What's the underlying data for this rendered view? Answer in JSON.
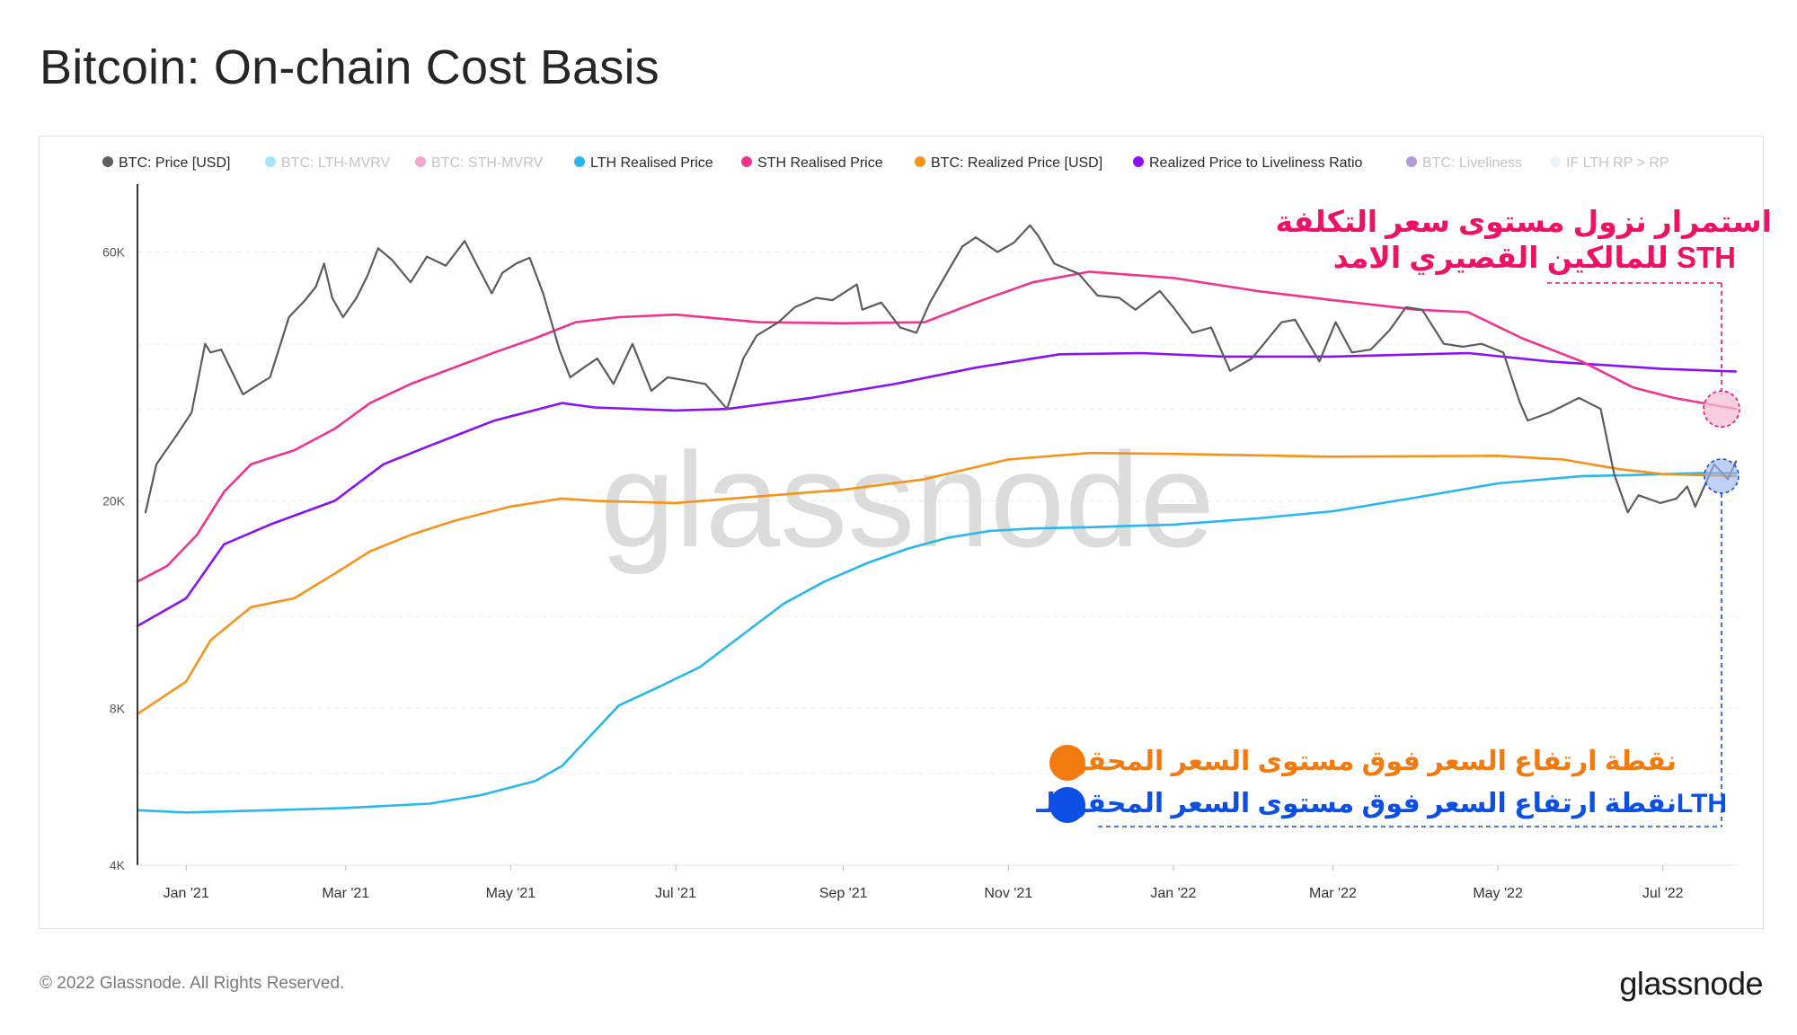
{
  "title": "Bitcoin: On-chain Cost Basis",
  "footer": {
    "copyright": "© 2022 Glassnode. All Rights Reserved.",
    "logo": "glassnode"
  },
  "watermark": "glassnode",
  "colors": {
    "price": "#5c5c5c",
    "lth_mvrv": "#3ec3f1",
    "sth_mvrv": "#f0338f",
    "lth_rp": "#29b7f0",
    "sth_rp": "#f0338f",
    "realized": "#f7931a",
    "liveliness": "#8a12f2",
    "btc_liveliness": "#5a1ea8",
    "if_lth": "#cde9f8",
    "annot_pink": "#ee1166",
    "annot_orange": "#f27a0e",
    "annot_blue": "#0b4fe5"
  },
  "annotations": {
    "sth": [
      "استمرار نزول مستوى سعر التكلفة",
      "للمالكين القصيري الامد STH"
    ],
    "realized": "نقطة ارتفاع السعر فوق مستوى السعر المحقق",
    "lth": "نقطة ارتفاع السعر فوق مستوى السعر المحقق لـLTH"
  },
  "chart_data": {
    "type": "line",
    "title": "Bitcoin: On-chain Cost Basis",
    "y_scale": "log",
    "ylim": [
      4000,
      80000
    ],
    "y_ticks": [
      {
        "v": 4000,
        "label": "4K"
      },
      {
        "v": 8000,
        "label": "8K"
      },
      {
        "v": 20000,
        "label": "20K"
      },
      {
        "v": 60000,
        "label": "60K"
      }
    ],
    "x_range": [
      "2020-12-14",
      "2022-07-29"
    ],
    "x_ticks": [
      {
        "d": "2021-01-01",
        "label": "Jan '21"
      },
      {
        "d": "2021-03-01",
        "label": "Mar '21"
      },
      {
        "d": "2021-05-01",
        "label": "May '21"
      },
      {
        "d": "2021-07-01",
        "label": "Jul '21"
      },
      {
        "d": "2021-09-01",
        "label": "Sep '21"
      },
      {
        "d": "2021-11-01",
        "label": "Nov '21"
      },
      {
        "d": "2022-01-01",
        "label": "Jan '22"
      },
      {
        "d": "2022-03-01",
        "label": "Mar '22"
      },
      {
        "d": "2022-05-01",
        "label": "May '22"
      },
      {
        "d": "2022-07-01",
        "label": "Jul '22"
      }
    ],
    "legend_position": "top",
    "legend": [
      {
        "name": "BTC: Price [USD]",
        "color": "#5c5c5c",
        "active": true
      },
      {
        "name": "BTC: LTH-MVRV",
        "color": "#3ec3f1",
        "active": false
      },
      {
        "name": "BTC: STH-MVRV",
        "color": "#f0338f",
        "active": false
      },
      {
        "name": "LTH Realised Price",
        "color": "#29b7f0",
        "active": true
      },
      {
        "name": "STH Realised Price",
        "color": "#f0338f",
        "active": true
      },
      {
        "name": "BTC: Realized Price [USD]",
        "color": "#f7931a",
        "active": true
      },
      {
        "name": "Realized Price to Liveliness Ratio",
        "color": "#8a12f2",
        "active": true
      },
      {
        "name": "BTC: Liveliness",
        "color": "#5a1ea8",
        "active": false
      },
      {
        "name": "IF LTH RP > RP",
        "color": "#cde9f8",
        "active": false
      }
    ],
    "series": [
      {
        "name": "BTC: Price [USD]",
        "key": "price",
        "color": "#5c5c5c",
        "points": [
          [
            "2020-12-17",
            19000
          ],
          [
            "2020-12-21",
            23500
          ],
          [
            "2020-12-28",
            26500
          ],
          [
            "2021-01-03",
            29500
          ],
          [
            "2021-01-08",
            40000
          ],
          [
            "2021-01-10",
            38500
          ],
          [
            "2021-01-14",
            39000
          ],
          [
            "2021-01-22",
            32000
          ],
          [
            "2021-01-28",
            33500
          ],
          [
            "2021-02-01",
            34500
          ],
          [
            "2021-02-08",
            45000
          ],
          [
            "2021-02-14",
            48500
          ],
          [
            "2021-02-18",
            51500
          ],
          [
            "2021-02-21",
            57000
          ],
          [
            "2021-02-24",
            49000
          ],
          [
            "2021-02-28",
            45000
          ],
          [
            "2021-03-05",
            49000
          ],
          [
            "2021-03-09",
            54000
          ],
          [
            "2021-03-13",
            61000
          ],
          [
            "2021-03-18",
            58000
          ],
          [
            "2021-03-25",
            52500
          ],
          [
            "2021-03-31",
            58800
          ],
          [
            "2021-04-07",
            56500
          ],
          [
            "2021-04-14",
            63000
          ],
          [
            "2021-04-19",
            56000
          ],
          [
            "2021-04-24",
            50000
          ],
          [
            "2021-04-28",
            54800
          ],
          [
            "2021-05-03",
            57000
          ],
          [
            "2021-05-08",
            58500
          ],
          [
            "2021-05-13",
            50000
          ],
          [
            "2021-05-19",
            39000
          ],
          [
            "2021-05-23",
            34500
          ],
          [
            "2021-05-28",
            36000
          ],
          [
            "2021-06-02",
            37500
          ],
          [
            "2021-06-08",
            33500
          ],
          [
            "2021-06-15",
            40000
          ],
          [
            "2021-06-22",
            32500
          ],
          [
            "2021-06-28",
            34500
          ],
          [
            "2021-07-05",
            34000
          ],
          [
            "2021-07-12",
            33500
          ],
          [
            "2021-07-20",
            30000
          ],
          [
            "2021-07-26",
            37500
          ],
          [
            "2021-07-31",
            41500
          ],
          [
            "2021-08-08",
            44000
          ],
          [
            "2021-08-14",
            47000
          ],
          [
            "2021-08-22",
            49000
          ],
          [
            "2021-08-28",
            48500
          ],
          [
            "2021-09-06",
            52000
          ],
          [
            "2021-09-08",
            46500
          ],
          [
            "2021-09-15",
            48000
          ],
          [
            "2021-09-22",
            43000
          ],
          [
            "2021-09-28",
            42000
          ],
          [
            "2021-10-03",
            48000
          ],
          [
            "2021-10-10",
            55500
          ],
          [
            "2021-10-15",
            61500
          ],
          [
            "2021-10-20",
            64000
          ],
          [
            "2021-10-28",
            60000
          ],
          [
            "2021-11-03",
            62500
          ],
          [
            "2021-11-09",
            67500
          ],
          [
            "2021-11-12",
            64500
          ],
          [
            "2021-11-18",
            57000
          ],
          [
            "2021-11-27",
            54500
          ],
          [
            "2021-12-04",
            49500
          ],
          [
            "2021-12-12",
            49000
          ],
          [
            "2021-12-18",
            46500
          ],
          [
            "2021-12-27",
            50500
          ],
          [
            "2022-01-01",
            47000
          ],
          [
            "2022-01-08",
            42000
          ],
          [
            "2022-01-15",
            43000
          ],
          [
            "2022-01-22",
            35500
          ],
          [
            "2022-01-30",
            37500
          ],
          [
            "2022-02-10",
            44000
          ],
          [
            "2022-02-15",
            44500
          ],
          [
            "2022-02-24",
            37000
          ],
          [
            "2022-03-02",
            44000
          ],
          [
            "2022-03-08",
            38500
          ],
          [
            "2022-03-15",
            39000
          ],
          [
            "2022-03-22",
            42500
          ],
          [
            "2022-03-28",
            47000
          ],
          [
            "2022-04-03",
            46500
          ],
          [
            "2022-04-11",
            40000
          ],
          [
            "2022-04-18",
            39500
          ],
          [
            "2022-04-25",
            40000
          ],
          [
            "2022-05-03",
            38500
          ],
          [
            "2022-05-09",
            31000
          ],
          [
            "2022-05-12",
            28500
          ],
          [
            "2022-05-20",
            29500
          ],
          [
            "2022-05-31",
            31500
          ],
          [
            "2022-06-08",
            30000
          ],
          [
            "2022-06-13",
            22500
          ],
          [
            "2022-06-18",
            19000
          ],
          [
            "2022-06-22",
            20500
          ],
          [
            "2022-06-30",
            19800
          ],
          [
            "2022-07-06",
            20200
          ],
          [
            "2022-07-10",
            21300
          ],
          [
            "2022-07-13",
            19500
          ],
          [
            "2022-07-20",
            23500
          ],
          [
            "2022-07-25",
            22000
          ],
          [
            "2022-07-28",
            23800
          ]
        ]
      },
      {
        "name": "LTH Realised Price",
        "key": "lth_rp",
        "color": "#29b7f0",
        "points": [
          [
            "2020-12-14",
            5100
          ],
          [
            "2021-01-01",
            5050
          ],
          [
            "2021-02-01",
            5100
          ],
          [
            "2021-03-01",
            5150
          ],
          [
            "2021-04-01",
            5250
          ],
          [
            "2021-04-20",
            5450
          ],
          [
            "2021-05-10",
            5800
          ],
          [
            "2021-05-20",
            6200
          ],
          [
            "2021-06-10",
            8100
          ],
          [
            "2021-06-25",
            8800
          ],
          [
            "2021-07-10",
            9600
          ],
          [
            "2021-07-25",
            11000
          ],
          [
            "2021-08-10",
            12700
          ],
          [
            "2021-08-25",
            14000
          ],
          [
            "2021-09-10",
            15200
          ],
          [
            "2021-09-25",
            16200
          ],
          [
            "2021-10-10",
            17000
          ],
          [
            "2021-10-25",
            17500
          ],
          [
            "2021-11-10",
            17700
          ],
          [
            "2021-12-01",
            17800
          ],
          [
            "2022-01-01",
            18000
          ],
          [
            "2022-02-01",
            18500
          ],
          [
            "2022-03-01",
            19100
          ],
          [
            "2022-04-01",
            20300
          ],
          [
            "2022-05-01",
            21600
          ],
          [
            "2022-06-01",
            22300
          ],
          [
            "2022-06-20",
            22400
          ],
          [
            "2022-07-01",
            22500
          ],
          [
            "2022-07-15",
            22600
          ],
          [
            "2022-07-28",
            22600
          ]
        ]
      },
      {
        "name": "STH Realised Price",
        "key": "sth_rp",
        "color": "#f0338f",
        "points": [
          [
            "2020-12-14",
            14000
          ],
          [
            "2020-12-25",
            15000
          ],
          [
            "2021-01-05",
            17200
          ],
          [
            "2021-01-15",
            20800
          ],
          [
            "2021-01-25",
            23500
          ],
          [
            "2021-02-10",
            25000
          ],
          [
            "2021-02-25",
            27500
          ],
          [
            "2021-03-10",
            30800
          ],
          [
            "2021-03-25",
            33500
          ],
          [
            "2021-04-10",
            36000
          ],
          [
            "2021-04-25",
            38500
          ],
          [
            "2021-05-10",
            41000
          ],
          [
            "2021-05-25",
            44000
          ],
          [
            "2021-06-10",
            45000
          ],
          [
            "2021-07-01",
            45500
          ],
          [
            "2021-08-01",
            44000
          ],
          [
            "2021-09-01",
            43800
          ],
          [
            "2021-10-01",
            44000
          ],
          [
            "2021-10-20",
            48000
          ],
          [
            "2021-11-10",
            52500
          ],
          [
            "2021-12-01",
            55000
          ],
          [
            "2022-01-01",
            53500
          ],
          [
            "2022-02-01",
            50500
          ],
          [
            "2022-03-01",
            48500
          ],
          [
            "2022-04-01",
            46500
          ],
          [
            "2022-04-20",
            46000
          ],
          [
            "2022-05-10",
            41000
          ],
          [
            "2022-06-01",
            37000
          ],
          [
            "2022-06-20",
            33000
          ],
          [
            "2022-07-05",
            31500
          ],
          [
            "2022-07-28",
            30000
          ]
        ]
      },
      {
        "name": "BTC: Realized Price [USD]",
        "key": "realized",
        "color": "#f7931a",
        "points": [
          [
            "2020-12-14",
            7800
          ],
          [
            "2021-01-01",
            9000
          ],
          [
            "2021-01-10",
            10800
          ],
          [
            "2021-01-25",
            12500
          ],
          [
            "2021-02-10",
            13000
          ],
          [
            "2021-02-25",
            14500
          ],
          [
            "2021-03-10",
            16000
          ],
          [
            "2021-03-25",
            17200
          ],
          [
            "2021-04-10",
            18300
          ],
          [
            "2021-05-01",
            19500
          ],
          [
            "2021-05-20",
            20200
          ],
          [
            "2021-06-01",
            20000
          ],
          [
            "2021-07-01",
            19800
          ],
          [
            "2021-08-01",
            20400
          ],
          [
            "2021-09-01",
            21000
          ],
          [
            "2021-10-01",
            22000
          ],
          [
            "2021-11-01",
            24000
          ],
          [
            "2021-12-01",
            24700
          ],
          [
            "2022-01-01",
            24600
          ],
          [
            "2022-03-01",
            24300
          ],
          [
            "2022-05-01",
            24400
          ],
          [
            "2022-05-25",
            24000
          ],
          [
            "2022-06-15",
            23000
          ],
          [
            "2022-07-01",
            22500
          ],
          [
            "2022-07-28",
            22300
          ]
        ]
      },
      {
        "name": "Realized Price to Liveliness Ratio",
        "key": "liveliness",
        "color": "#8a12f2",
        "points": [
          [
            "2020-12-14",
            11500
          ],
          [
            "2021-01-01",
            13000
          ],
          [
            "2021-01-15",
            16500
          ],
          [
            "2021-02-01",
            18000
          ],
          [
            "2021-02-25",
            20000
          ],
          [
            "2021-03-15",
            23500
          ],
          [
            "2021-04-01",
            25500
          ],
          [
            "2021-04-25",
            28500
          ],
          [
            "2021-05-20",
            30800
          ],
          [
            "2021-06-01",
            30200
          ],
          [
            "2021-07-01",
            29800
          ],
          [
            "2021-07-20",
            30000
          ],
          [
            "2021-08-20",
            31500
          ],
          [
            "2021-09-20",
            33500
          ],
          [
            "2021-10-20",
            36000
          ],
          [
            "2021-11-20",
            38200
          ],
          [
            "2021-12-20",
            38400
          ],
          [
            "2022-01-20",
            37800
          ],
          [
            "2022-03-01",
            37800
          ],
          [
            "2022-04-20",
            38400
          ],
          [
            "2022-05-20",
            37000
          ],
          [
            "2022-07-01",
            35800
          ],
          [
            "2022-07-28",
            35400
          ]
        ]
      }
    ]
  }
}
